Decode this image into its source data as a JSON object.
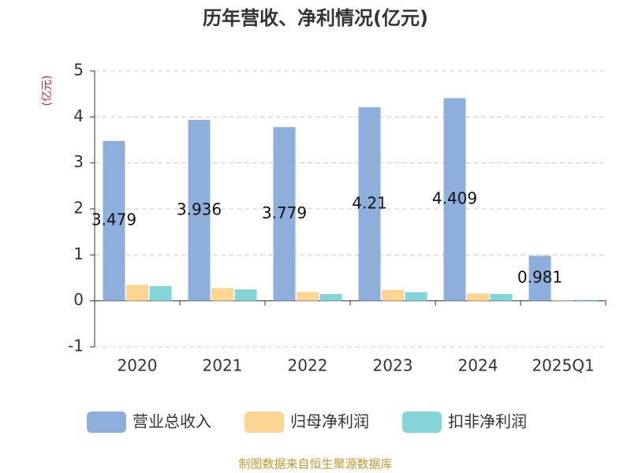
{
  "chart_data": {
    "type": "bar",
    "title": "历年营收、净利情况(亿元)",
    "y_label": "(亿元)",
    "source": "制图数据来自恒生聚源数据库",
    "categories": [
      "2020",
      "2021",
      "2022",
      "2023",
      "2024",
      "2025Q1"
    ],
    "series": [
      {
        "name": "营业总收入",
        "color": "#8eaedc",
        "labels": true,
        "values": [
          3.479,
          3.936,
          3.779,
          4.21,
          4.409,
          0.981
        ]
      },
      {
        "name": "归母净利润",
        "color": "#fdd592",
        "labels": false,
        "values": [
          0.35,
          0.28,
          0.19,
          0.24,
          0.16,
          0.01
        ]
      },
      {
        "name": "扣非净利润",
        "color": "#84d5d8",
        "labels": false,
        "values": [
          0.32,
          0.25,
          0.15,
          0.19,
          0.15,
          0.02
        ]
      }
    ],
    "ylim": [
      -1,
      5
    ],
    "yticks": [
      -1,
      0,
      1,
      2,
      3,
      4,
      5
    ],
    "grid": true,
    "legend": "bottom"
  }
}
